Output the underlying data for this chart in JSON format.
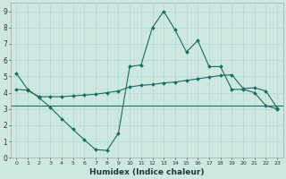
{
  "xlabel": "Humidex (Indice chaleur)",
  "background_color": "#cce8e0",
  "grid_color_minor": "#b8d8d0",
  "grid_color_major": "#c0ddd5",
  "line_color": "#1a6b60",
  "x_values": [
    0,
    1,
    2,
    3,
    4,
    5,
    6,
    7,
    8,
    9,
    10,
    11,
    12,
    13,
    14,
    15,
    16,
    17,
    18,
    19,
    20,
    21,
    22,
    23
  ],
  "line1": [
    5.2,
    4.2,
    3.7,
    3.1,
    2.4,
    1.75,
    1.1,
    0.5,
    0.45,
    1.5,
    5.6,
    5.7,
    8.0,
    9.0,
    7.85,
    6.5,
    7.2,
    5.6,
    5.6,
    4.2,
    4.2,
    4.0,
    3.2,
    3.0
  ],
  "line2": [
    4.2,
    4.15,
    3.75,
    3.75,
    3.75,
    3.8,
    3.85,
    3.9,
    4.0,
    4.1,
    4.35,
    4.45,
    4.5,
    4.6,
    4.65,
    4.75,
    4.85,
    4.95,
    5.05,
    5.1,
    4.25,
    4.3,
    4.1,
    3.05
  ],
  "line3_y": 3.2,
  "ylim": [
    0,
    9.5
  ],
  "xlim": [
    -0.5,
    23.5
  ],
  "yticks": [
    0,
    1,
    2,
    3,
    4,
    5,
    6,
    7,
    8,
    9
  ],
  "xticks": [
    0,
    1,
    2,
    3,
    4,
    5,
    6,
    7,
    8,
    9,
    10,
    11,
    12,
    13,
    14,
    15,
    16,
    17,
    18,
    19,
    20,
    21,
    22,
    23
  ]
}
